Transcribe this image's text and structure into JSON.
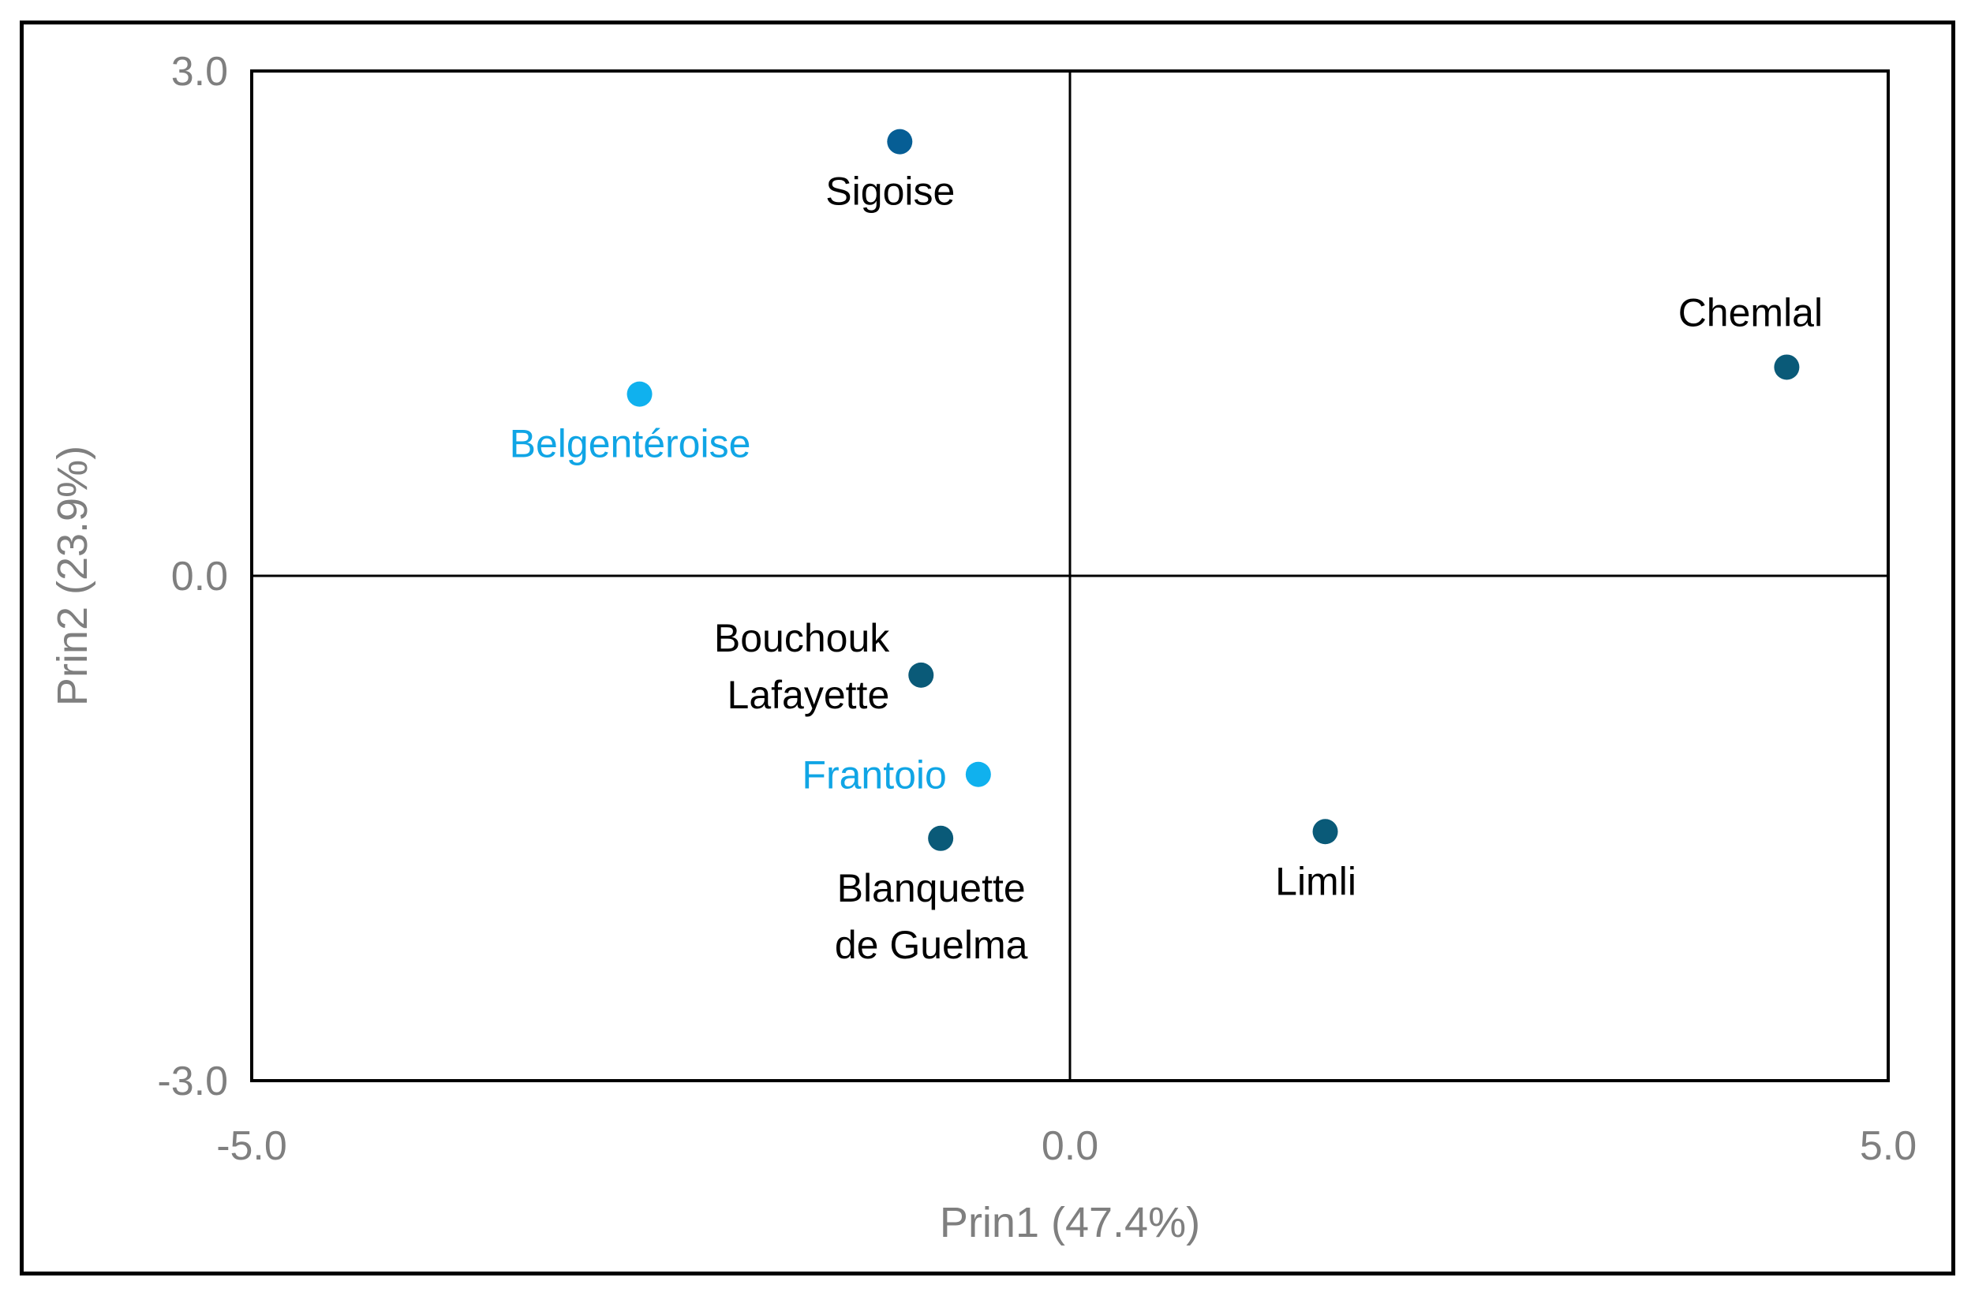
{
  "chart_data": {
    "type": "scatter",
    "title": "",
    "xlabel": "Prin1 (47.4%)",
    "ylabel": "Prin2 (23.9%)",
    "xlim": [
      -5.0,
      5.0
    ],
    "ylim": [
      -3.0,
      3.0
    ],
    "x_ticks": [
      "-5.0",
      "0.0",
      "5.0"
    ],
    "y_ticks": [
      "-3.0",
      "0.0",
      "3.0"
    ],
    "x_tick_values": [
      -5.0,
      0.0,
      5.0
    ],
    "y_tick_values": [
      -3.0,
      0.0,
      3.0
    ],
    "grid": false,
    "reference_lines": [
      0.0
    ],
    "legend": "none",
    "points": [
      {
        "label": [
          "Sigoise"
        ],
        "x": -1.04,
        "y": 2.58,
        "color": "#065E95",
        "label_color": "#000000",
        "label_position": "below"
      },
      {
        "label": [
          "Chemlal"
        ],
        "x": 4.38,
        "y": 1.24,
        "color": "#0A5A78",
        "label_color": "#000000",
        "label_position": "above-left"
      },
      {
        "label": [
          "Belgentéroise"
        ],
        "x": -2.63,
        "y": 1.08,
        "color": "#10B1EE",
        "label_color": "#10A5E5",
        "label_position": "below"
      },
      {
        "label": [
          "Bouchouk",
          "Lafayette"
        ],
        "x": -0.91,
        "y": -0.59,
        "color": "#0A5A78",
        "label_color": "#000000",
        "label_position": "left"
      },
      {
        "label": [
          "Frantoio"
        ],
        "x": -0.56,
        "y": -1.18,
        "color": "#10B1EE",
        "label_color": "#10A5E5",
        "label_position": "left"
      },
      {
        "label": [
          "Blanquette",
          "de Guelma"
        ],
        "x": -0.79,
        "y": -1.56,
        "color": "#0A5A78",
        "label_color": "#000000",
        "label_position": "below"
      },
      {
        "label": [
          "Limli"
        ],
        "x": 1.56,
        "y": -1.52,
        "color": "#0A5A78",
        "label_color": "#000000",
        "label_position": "below"
      }
    ]
  }
}
